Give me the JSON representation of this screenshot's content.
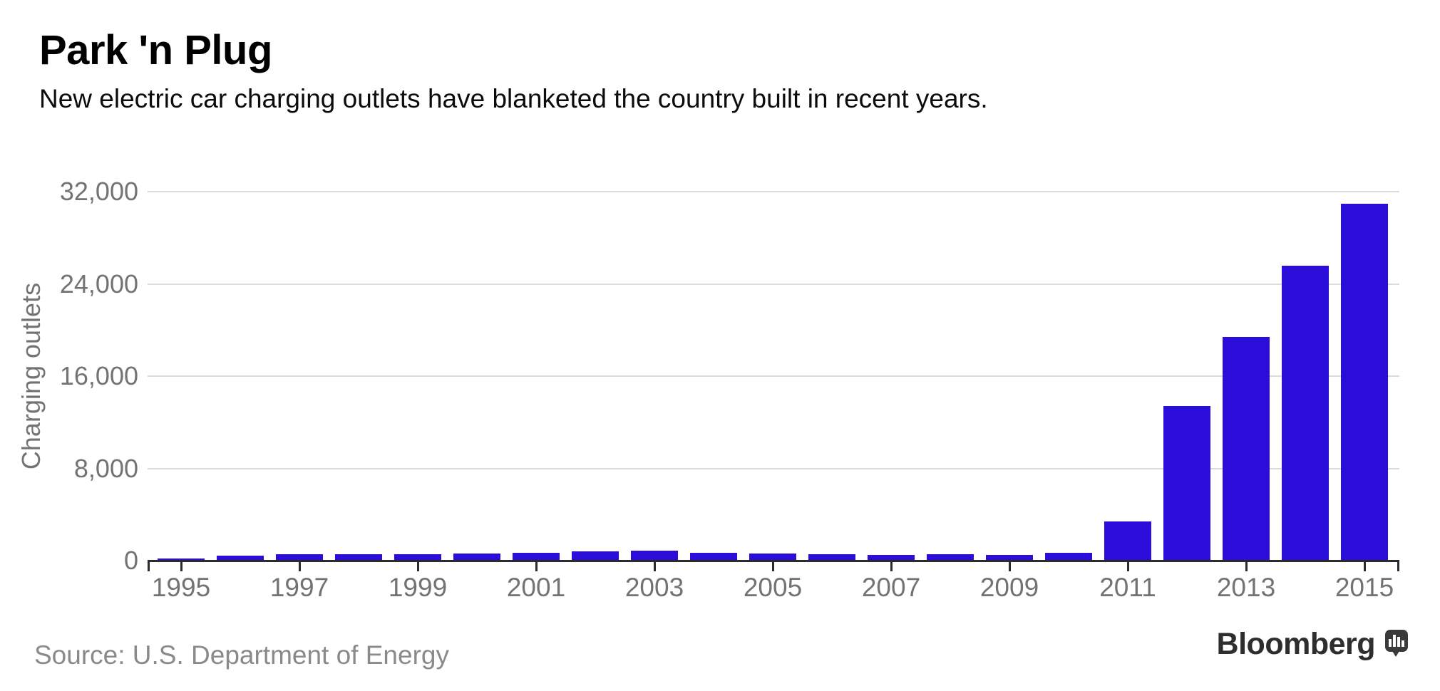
{
  "header": {
    "title": "Park 'n Plug",
    "subtitle": "New electric car charging outlets have blanketed the country built in recent years."
  },
  "footer": {
    "source": "Source: U.S. Department of Energy",
    "brand": "Bloomberg"
  },
  "colors": {
    "bar": "#2b0dd9",
    "gridline": "#dcdcdc",
    "axis": "#2b2b2b",
    "tick_label": "#737373",
    "source_text": "#8a8a8a",
    "brand_text": "#2e2e2e"
  },
  "chart_data": {
    "type": "bar",
    "title": "Park 'n Plug",
    "subtitle": "New electric car charging outlets have blanketed the country built in recent years.",
    "xlabel": "",
    "ylabel": "Charging outlets",
    "ylim": [
      0,
      32000
    ],
    "grid": true,
    "legend": false,
    "bar_color": "#2b0dd9",
    "categories": [
      1995,
      1996,
      1997,
      1998,
      1999,
      2000,
      2001,
      2002,
      2003,
      2004,
      2005,
      2006,
      2007,
      2008,
      2009,
      2010,
      2011,
      2012,
      2013,
      2014,
      2015
    ],
    "values": [
      188,
      434,
      535,
      583,
      584,
      600,
      650,
      800,
      850,
      700,
      600,
      550,
      500,
      550,
      500,
      650,
      3394,
      13392,
      19410,
      25602,
      30945
    ],
    "yticks": [
      0,
      8000,
      16000,
      24000,
      32000
    ],
    "ytick_labels": [
      "0",
      "8,000",
      "16,000",
      "24,000",
      "32,000"
    ],
    "xticks": [
      1995,
      1997,
      1999,
      2001,
      2003,
      2005,
      2007,
      2009,
      2011,
      2013,
      2015
    ],
    "xtick_labels": [
      "1995",
      "1997",
      "1999",
      "2001",
      "2003",
      "2005",
      "2007",
      "2009",
      "2011",
      "2013",
      "2015"
    ],
    "source": "U.S. Department of Energy"
  }
}
